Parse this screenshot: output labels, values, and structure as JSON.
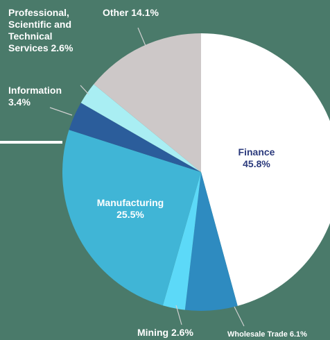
{
  "chart_data": {
    "type": "pie",
    "categories": [
      "Finance",
      "Wholesale Trade",
      "Mining",
      "Manufacturing",
      "Information",
      "Professional, Scientific and Technical Services",
      "Other"
    ],
    "values": [
      45.8,
      6.1,
      2.6,
      25.5,
      3.4,
      2.6,
      14.1
    ],
    "value_labels": [
      "45.8%",
      "6.1%",
      "2.6%",
      "25.5%",
      "3.4%",
      "2.6%",
      "14.1%"
    ],
    "colors": [
      "#ffffff",
      "#2e8bc0",
      "#5cd9f8",
      "#40b5d6",
      "#2b5d9b",
      "#a9eef3",
      "#cdc8c8"
    ]
  }
}
